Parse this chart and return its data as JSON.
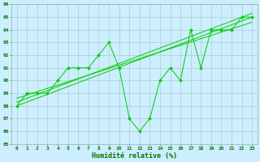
{
  "xlabel": "Humidité relative (%)",
  "bg_color": "#cceeff",
  "grid_color": "#aacccc",
  "line_color": "#00cc00",
  "tick_color": "#007700",
  "xlim": [
    -0.5,
    23.5
  ],
  "ylim": [
    85,
    96
  ],
  "yticks": [
    85,
    86,
    87,
    88,
    89,
    90,
    91,
    92,
    93,
    94,
    95,
    96
  ],
  "xticks": [
    0,
    1,
    2,
    3,
    4,
    5,
    6,
    7,
    8,
    9,
    10,
    11,
    12,
    13,
    14,
    15,
    16,
    17,
    18,
    19,
    20,
    21,
    22,
    23
  ],
  "main_series": {
    "x": [
      0,
      1,
      2,
      3,
      4,
      5,
      6,
      7,
      8,
      9,
      10,
      11,
      12,
      13,
      14,
      15,
      16,
      17,
      18,
      19,
      20,
      21,
      22,
      23
    ],
    "y": [
      88,
      89,
      89,
      89,
      90,
      91,
      91,
      91,
      92,
      93,
      91,
      87,
      86,
      87,
      90,
      91,
      90,
      94,
      91,
      94,
      94,
      94,
      95,
      95
    ]
  },
  "trend_lines": [
    {
      "x": [
        0,
        23
      ],
      "y": [
        88.0,
        95.0
      ]
    },
    {
      "x": [
        0,
        23
      ],
      "y": [
        88.3,
        95.3
      ]
    },
    {
      "x": [
        0,
        23
      ],
      "y": [
        88.6,
        94.6
      ]
    }
  ]
}
